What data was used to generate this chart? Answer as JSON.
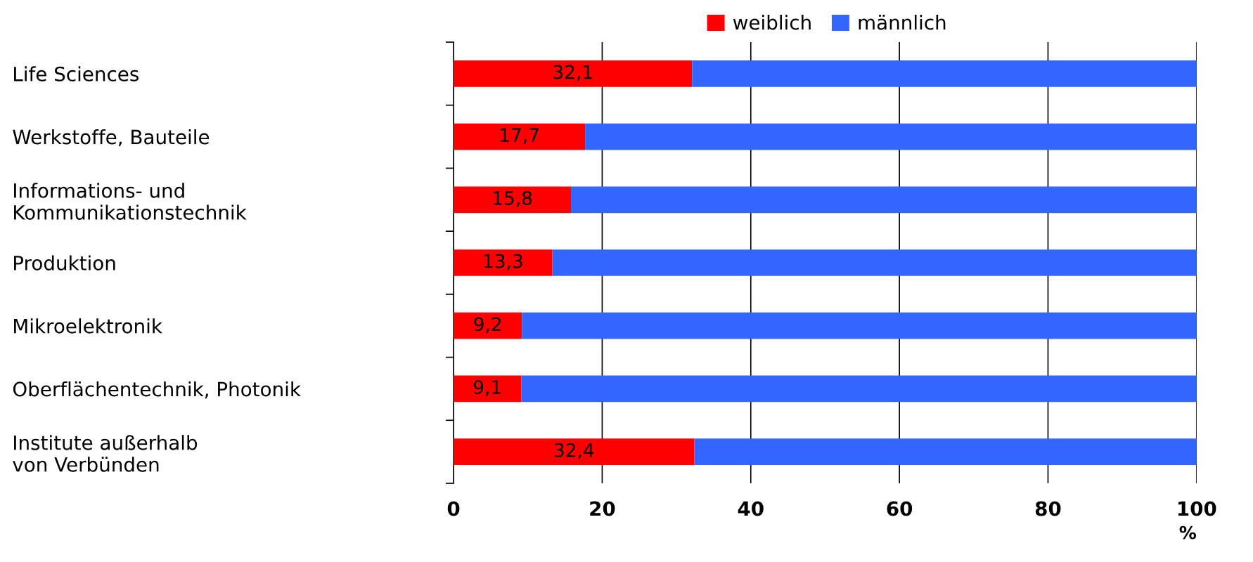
{
  "chart_data": {
    "type": "bar",
    "orientation": "horizontal",
    "stacked": true,
    "categories": [
      "Life Sciences",
      "Werkstoffe, Bauteile",
      "Informations- und\nKommunikationstechnik",
      "Produktion",
      "Mikroelektronik",
      "Oberflächentechnik, Photonik",
      "Institute außerhalb\nvon Verbünden"
    ],
    "series": [
      {
        "name": "weiblich",
        "color": "#ff0000",
        "values": [
          32.1,
          17.7,
          15.8,
          13.3,
          9.2,
          9.1,
          32.4
        ],
        "value_labels": [
          "32,1",
          "17,7",
          "15,8",
          "13,3",
          "9,2",
          "9,1",
          "32,4"
        ]
      },
      {
        "name": "männlich",
        "color": "#3366ff",
        "values": [
          67.9,
          82.3,
          84.2,
          86.7,
          90.8,
          90.9,
          67.6
        ]
      }
    ],
    "xlim": [
      0,
      100
    ],
    "xticks": [
      0,
      20,
      40,
      60,
      80,
      100
    ],
    "xlabel": "%",
    "grid": "x",
    "legend": "top"
  }
}
